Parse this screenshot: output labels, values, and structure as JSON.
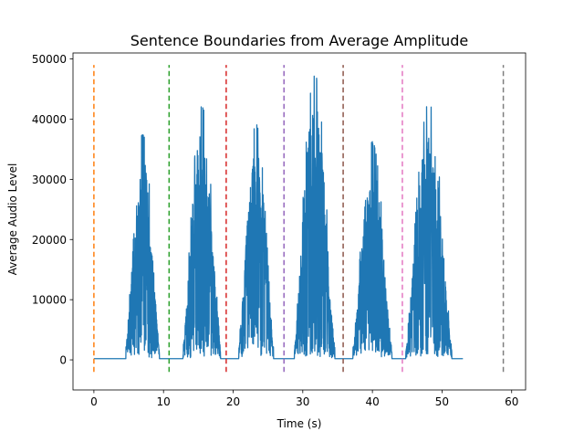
{
  "chart_data": {
    "type": "line",
    "title": "Sentence Boundaries from Average Amplitude",
    "xlabel": "Time (s)",
    "ylabel": "Average Audio Level",
    "xlim": [
      -3,
      62
    ],
    "ylim": [
      -5000,
      51000
    ],
    "xticks": [
      0,
      10,
      20,
      30,
      40,
      50,
      60
    ],
    "yticks": [
      0,
      10000,
      20000,
      30000,
      40000,
      50000
    ],
    "grid": false,
    "signal_color": "#1f77b4",
    "signal": {
      "baseline": 200,
      "x_start": 0,
      "x_end": 53,
      "bursts": [
        {
          "start": 4.6,
          "end": 9.4,
          "peak": 37000
        },
        {
          "start": 12.8,
          "end": 18.2,
          "peak": 41500
        },
        {
          "start": 20.8,
          "end": 25.8,
          "peak": 38500
        },
        {
          "start": 28.8,
          "end": 34.6,
          "peak": 46800
        },
        {
          "start": 37.2,
          "end": 42.8,
          "peak": 35600
        },
        {
          "start": 44.8,
          "end": 51.4,
          "peak": 42000
        }
      ]
    },
    "boundaries": [
      {
        "x": 0.0,
        "color": "#ff7f0e"
      },
      {
        "x": 10.8,
        "color": "#2ca02c"
      },
      {
        "x": 19.0,
        "color": "#d62728"
      },
      {
        "x": 27.3,
        "color": "#9467bd"
      },
      {
        "x": 35.8,
        "color": "#8c564b"
      },
      {
        "x": 44.3,
        "color": "#e377c2"
      },
      {
        "x": 58.8,
        "color": "#7f7f7f"
      }
    ],
    "boundary_range": [
      -2000,
      49000
    ]
  }
}
